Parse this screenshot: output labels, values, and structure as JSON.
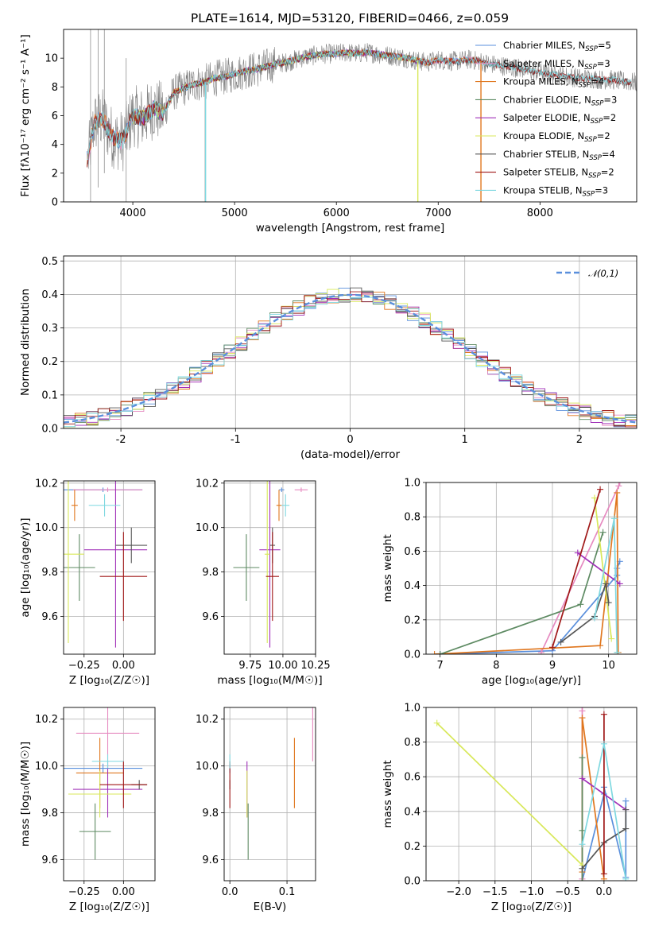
{
  "figure": {
    "title": "PLATE=1614, MJD=53120, FIBERID=0466, z=0.059"
  },
  "colors": {
    "spectrum": "#808080",
    "normal_curve": "#5a8fdc",
    "grid": "#b0b0b0"
  },
  "chart_data": [
    {
      "id": "spectrum",
      "type": "line",
      "xlabel": "wavelength [Angstrom, rest frame]",
      "ylabel": "Flux [fλ10⁻¹⁷ erg cm⁻² s⁻¹ A⁻¹]",
      "xlim": [
        3320,
        8950
      ],
      "ylim": [
        0,
        12
      ],
      "xticks": [
        4000,
        5000,
        6000,
        7000,
        8000
      ],
      "yticks": [
        0,
        2,
        4,
        6,
        8,
        10
      ],
      "grid": false,
      "legend_position": "right",
      "observed_spectrum": {
        "color": "#808080",
        "x": [
          3560,
          3620,
          3700,
          3800,
          3900,
          4000,
          4100,
          4200,
          4300,
          4400,
          4500,
          4600,
          4700,
          4800,
          4900,
          5000,
          5100,
          5200,
          5300,
          5400,
          5500,
          5600,
          5700,
          5800,
          5900,
          6000,
          6100,
          6200,
          6300,
          6400,
          6500,
          6600,
          6700,
          6800,
          6900,
          7000,
          7100,
          7200,
          7300,
          7400,
          7500,
          7600,
          7700,
          7800,
          7900,
          8000,
          8100,
          8200,
          8300,
          8400,
          8500,
          8600,
          8700,
          8800,
          8950
        ],
        "y": [
          3.0,
          5.5,
          5.8,
          4.5,
          4.2,
          6.0,
          5.8,
          6.5,
          6.2,
          7.6,
          7.9,
          8.2,
          8.3,
          8.6,
          8.7,
          8.9,
          9.1,
          9.2,
          9.4,
          9.6,
          9.7,
          9.9,
          10.1,
          10.2,
          10.3,
          10.3,
          10.4,
          10.3,
          10.4,
          10.3,
          10.2,
          10.1,
          10.0,
          9.8,
          9.7,
          9.9,
          9.8,
          9.8,
          9.9,
          9.8,
          9.6,
          9.5,
          9.4,
          9.3,
          9.1,
          9.0,
          8.9,
          8.8,
          8.7,
          8.6,
          8.6,
          8.5,
          8.5,
          8.4,
          8.3
        ]
      },
      "series": [
        {
          "name": "Chabrier MILES, N_SSP=5",
          "legend_label": "Chabrier MILES, N$_{SSP}$=5",
          "color": "#5a8fdc",
          "x_range": [
            3550,
            7420
          ]
        },
        {
          "name": "Salpeter MILES, N_SSP=3",
          "legend_label": "Salpeter MILES, N$_{SSP}$=3",
          "color": "#e68ac0",
          "x_range": [
            3550,
            7420
          ]
        },
        {
          "name": "Kroupa MILES, N_SSP=4",
          "legend_label": "Kroupa MILES, N$_{SSP}$=4",
          "color": "#e0771f",
          "x_range": [
            3550,
            7420
          ]
        },
        {
          "name": "Chabrier ELODIE, N_SSP=3",
          "legend_label": "Chabrier ELODIE, N$_{SSP}$=3",
          "color": "#5d8a62",
          "x_range": [
            4000,
            6800
          ]
        },
        {
          "name": "Salpeter ELODIE, N_SSP=2",
          "legend_label": "Salpeter ELODIE, N$_{SSP}$=2",
          "color": "#a030b8",
          "x_range": [
            4000,
            6800
          ]
        },
        {
          "name": "Kroupa ELODIE, N_SSP=2",
          "legend_label": "Kroupa ELODIE, N$_{SSP}$=2",
          "color": "#d8e85a",
          "x_range": [
            4000,
            6800
          ]
        },
        {
          "name": "Chabrier STELIB, N_SSP=4",
          "legend_label": "Chabrier STELIB, N$_{SSP}$=4",
          "color": "#555555",
          "x_range": [
            3550,
            8900
          ]
        },
        {
          "name": "Salpeter STELIB, N_SSP=2",
          "legend_label": "Salpeter STELIB, N$_{SSP}$=2",
          "color": "#a01818",
          "x_range": [
            3550,
            8900
          ]
        },
        {
          "name": "Kroupa STELIB, N_SSP=3",
          "legend_label": "Kroupa STELIB, N$_{SSP}$=3",
          "color": "#7fd8e0",
          "x_range": [
            3550,
            8900
          ]
        }
      ]
    },
    {
      "id": "residuals",
      "type": "histogram",
      "xlabel": "(data-model)/error",
      "ylabel": "Normed distribution",
      "xlim": [
        -2.5,
        2.5
      ],
      "ylim": [
        0,
        0.515
      ],
      "xticks": [
        -2,
        -1,
        0,
        1,
        2
      ],
      "yticks": [
        0.0,
        0.1,
        0.2,
        0.3,
        0.4,
        0.5
      ],
      "grid": true,
      "legend_position": "top-right",
      "reference_curve": {
        "name": "𝒩(0,1)",
        "color": "#5a8fdc",
        "style": "dashed"
      },
      "bin_width": 0.1,
      "bin_start": -2.5
    },
    {
      "id": "age-vs-Z",
      "type": "errorbar",
      "xlabel": "Z [log₁₀(Z/Z☉)]",
      "ylabel": "age  [log₁₀(age/yr)]",
      "xlim": [
        -0.38,
        0.2
      ],
      "ylim": [
        9.43,
        10.21
      ],
      "xticks": [
        -0.25,
        0.0
      ],
      "xtick_labels": [
        "−0.25",
        "0.00"
      ],
      "yticks": [
        9.6,
        9.8,
        10.0,
        10.2
      ],
      "grid": true
    },
    {
      "id": "age-vs-mass",
      "type": "errorbar",
      "xlabel": "mass [log₁₀(M/M☉)]",
      "ylabel": "",
      "xlim": [
        9.55,
        10.25
      ],
      "ylim": [
        9.43,
        10.21
      ],
      "xticks": [
        9.75,
        10.0,
        10.25
      ],
      "xtick_labels": [
        "9.75",
        "10.00",
        "10.25"
      ],
      "yticks": [
        9.6,
        9.8,
        10.0,
        10.2
      ],
      "grid": true
    },
    {
      "id": "weight-vs-age",
      "type": "line",
      "xlabel": "age  [log₁₀(age/yr)]",
      "ylabel": "mass weight",
      "xlim": [
        6.75,
        10.5
      ],
      "ylim": [
        0,
        1
      ],
      "xticks": [
        7,
        8,
        9,
        10
      ],
      "yticks": [
        0.0,
        0.2,
        0.4,
        0.6,
        0.8,
        1.0
      ],
      "grid": true
    },
    {
      "id": "mass-vs-Z",
      "type": "errorbar",
      "xlabel": "Z [log₁₀(Z/Z☉)]",
      "ylabel": "mass [log₁₀(M/M☉)]",
      "xlim": [
        -0.38,
        0.2
      ],
      "ylim": [
        9.51,
        10.25
      ],
      "xticks": [
        -0.25,
        0.0
      ],
      "xtick_labels": [
        "−0.25",
        "0.00"
      ],
      "yticks": [
        9.6,
        9.8,
        10.0,
        10.2
      ],
      "grid": true
    },
    {
      "id": "mass-vs-ebv",
      "type": "errorbar",
      "xlabel": "E(B-V)",
      "ylabel": "",
      "xlim": [
        -0.01,
        0.15
      ],
      "ylim": [
        9.51,
        10.25
      ],
      "xticks": [
        0.0,
        0.1
      ],
      "xtick_labels": [
        "0.0",
        "0.1"
      ],
      "yticks": [
        9.6,
        9.8,
        10.0,
        10.2
      ],
      "grid": true
    },
    {
      "id": "weight-vs-Z",
      "type": "line",
      "xlabel": "Z [log₁₀(Z/Z☉)]",
      "ylabel": "mass weight",
      "xlim": [
        -2.45,
        0.45
      ],
      "ylim": [
        0,
        1
      ],
      "xticks": [
        -2.0,
        -1.5,
        -1.0,
        -0.5,
        0.0
      ],
      "xtick_labels": [
        "−2.0",
        "−1.5",
        "−1.0",
        "−0.5",
        "0.0"
      ],
      "yticks": [
        0.0,
        0.2,
        0.4,
        0.6,
        0.8,
        1.0
      ],
      "grid": true
    }
  ],
  "populations": [
    {
      "series": "Chabrier MILES",
      "color": "#5a8fdc",
      "z": [
        -0.3,
        0.3,
        0.3,
        0.0,
        0.0
      ],
      "z_err": [
        0.05,
        0.05,
        0.05,
        0.05,
        0.05
      ],
      "age": [
        7.0,
        9.0,
        10.15,
        10.2,
        10.15
      ],
      "weight": [
        0.0,
        0.02,
        0.46,
        0.54,
        0.5
      ],
      "mean": {
        "z": -0.13,
        "z_err": 0.25,
        "age": 10.17,
        "age_err": 0.01,
        "mass": 9.99,
        "mass_err": 0.02,
        "mass_z": -0.13,
        "mass_z_err": 0.25,
        "ebv": 0.0,
        "mass_ebv_err": 0.02
      }
    },
    {
      "series": "Salpeter MILES",
      "color": "#e68ac0",
      "z": [
        -0.3,
        -0.3,
        -0.3
      ],
      "z_err": [
        0.05,
        0.05,
        0.05
      ],
      "age": [
        8.8,
        10.2,
        10.18
      ],
      "weight": [
        0.01,
        1.0,
        0.98
      ],
      "mean": {
        "z": -0.1,
        "z_err": 0.22,
        "age": 10.17,
        "age_err": 0.01,
        "mass": 10.14,
        "mass_err": 0.05,
        "mass_z": -0.1,
        "mass_z_err": 0.2,
        "ebv": 0.145,
        "mass_ebv_err": 0.12
      }
    },
    {
      "series": "Kroupa MILES",
      "color": "#e0771f",
      "z": [
        -0.3,
        -0.3,
        -0.3,
        0.0
      ],
      "z_err": [
        0.05,
        0.05,
        0.05,
        0.05
      ],
      "age": [
        6.9,
        9.85,
        10.15,
        10.17
      ],
      "weight": [
        0.0,
        0.05,
        0.94,
        0.01
      ],
      "mean": {
        "z": -0.31,
        "z_err": 0.02,
        "age": 10.1,
        "age_err": 0.07,
        "mass": 9.97,
        "mass_err": 0.02,
        "mass_z": -0.15,
        "mass_z_err": 0.15,
        "ebv": 0.113,
        "mass_ebv_err": 0.15
      }
    },
    {
      "series": "Chabrier ELODIE",
      "color": "#5d8a62",
      "z": [
        -0.3,
        -0.3,
        -0.3
      ],
      "z_err": [
        0.05,
        0.05,
        0.05
      ],
      "age": [
        7.0,
        9.5,
        9.9
      ],
      "weight": [
        0.0,
        0.29,
        0.71
      ],
      "mean": {
        "z": -0.28,
        "z_err": 0.1,
        "age": 9.82,
        "age_err": 0.15,
        "mass": 9.72,
        "mass_err": 0.1,
        "mass_z": -0.18,
        "mass_z_err": 0.1,
        "ebv": 0.032,
        "mass_ebv_err": 0.12
      }
    },
    {
      "series": "Salpeter ELODIE",
      "color": "#a030b8",
      "z": [
        -0.3,
        0.3
      ],
      "z_err": [
        0.05,
        0.05
      ],
      "age": [
        9.45,
        10.2
      ],
      "weight": [
        0.59,
        0.41
      ],
      "mean": {
        "z": -0.05,
        "z_err": 0.2,
        "age": 9.9,
        "age_err": 0.44,
        "mass": 9.9,
        "mass_err": 0.08,
        "mass_z": -0.1,
        "mass_z_err": 0.22,
        "ebv": 0.03,
        "mass_ebv_err": 0.12
      }
    },
    {
      "series": "Kroupa ELODIE",
      "color": "#d8e85a",
      "z": [
        -2.3,
        -0.3
      ],
      "z_err": [
        0.05,
        0.05
      ],
      "age": [
        9.75,
        10.05
      ],
      "weight": [
        0.91,
        0.09
      ],
      "mean": {
        "z": -0.35,
        "z_err": 0.1,
        "age": 9.88,
        "age_err": 0.4,
        "mass": 9.88,
        "mass_err": 0.02,
        "mass_z": -0.15,
        "mass_z_err": 0.2,
        "ebv": 0.03,
        "mass_ebv_err": 0.1
      }
    },
    {
      "series": "Chabrier STELIB",
      "color": "#555555",
      "z": [
        -0.3,
        0.0,
        0.3,
        0.3
      ],
      "z_err": [
        0.05,
        0.05,
        0.05,
        0.05
      ],
      "age": [
        9.15,
        9.75,
        9.95,
        10.0
      ],
      "weight": [
        0.07,
        0.22,
        0.41,
        0.3
      ],
      "mean": {
        "z": 0.05,
        "z_err": 0.1,
        "age": 9.92,
        "age_err": 0.08,
        "mass": 9.92,
        "mass_err": 0.02,
        "mass_z": 0.1,
        "mass_z_err": 0.05,
        "ebv": 0.0,
        "mass_ebv_err": 0.02
      }
    },
    {
      "series": "Salpeter STELIB",
      "color": "#a01818",
      "z": [
        0.0,
        0.0
      ],
      "z_err": [
        0.05,
        0.05
      ],
      "age": [
        9.0,
        9.85
      ],
      "weight": [
        0.04,
        0.96
      ],
      "mean": {
        "z": 0.0,
        "z_err": 0.15,
        "age": 9.78,
        "age_err": 0.2,
        "mass": 9.92,
        "mass_err": 0.05,
        "mass_z": 0.0,
        "mass_z_err": 0.15,
        "ebv": 0.0,
        "mass_ebv_err": 0.1
      }
    },
    {
      "series": "Kroupa STELIB",
      "color": "#7fd8e0",
      "z": [
        -0.3,
        0.0,
        0.3
      ],
      "z_err": [
        0.05,
        0.05,
        0.05
      ],
      "age": [
        9.75,
        10.1,
        10.15
      ],
      "weight": [
        0.21,
        0.79,
        0.01
      ],
      "mean": {
        "z": -0.12,
        "z_err": 0.1,
        "age": 10.1,
        "age_err": 0.05,
        "mass": 10.02,
        "mass_err": 0.03,
        "mass_z": -0.1,
        "mass_z_err": 0.1,
        "ebv": 0.0,
        "mass_ebv_err": 0.03
      }
    }
  ]
}
